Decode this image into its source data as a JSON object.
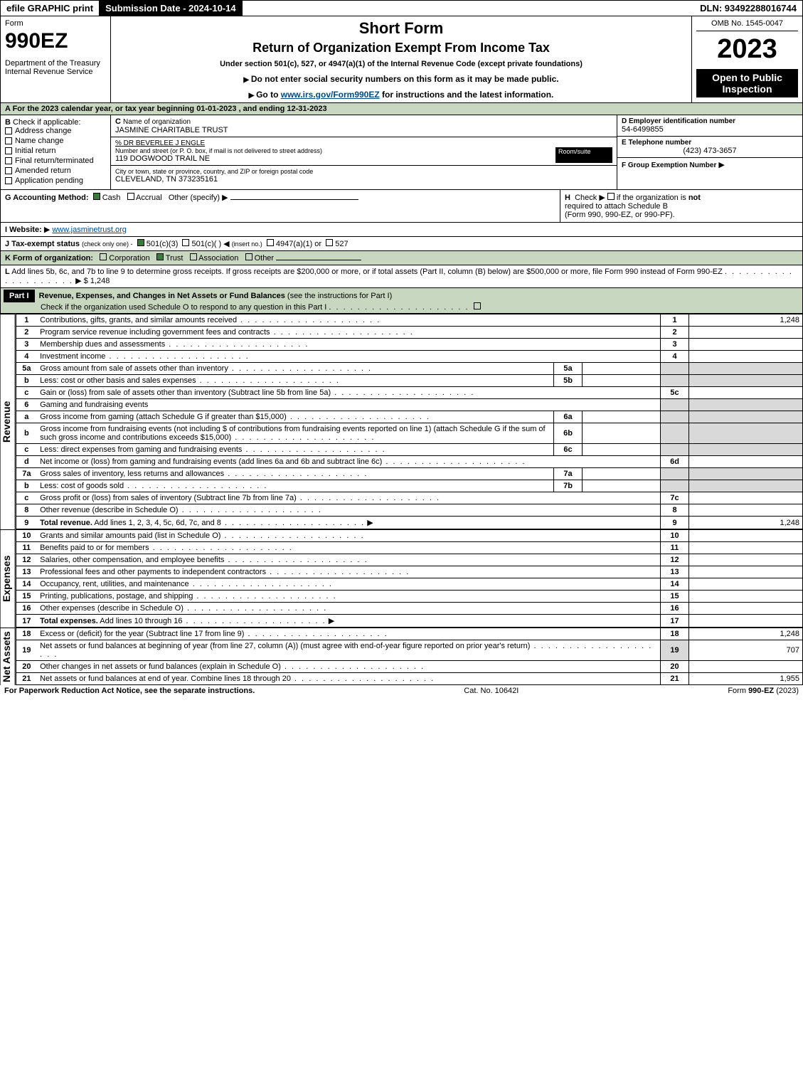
{
  "topbar": {
    "efile": "efile GRAPHIC print",
    "subdate_label": "Submission Date - 2024-10-14",
    "dln": "DLN: 93492288016744"
  },
  "header": {
    "form_label": "Form",
    "form_no": "990EZ",
    "dept": "Department of the Treasury",
    "irs": "Internal Revenue Service",
    "title_short": "Short Form",
    "title_return": "Return of Organization Exempt From Income Tax",
    "subtitle": "Under section 501(c), 527, or 4947(a)(1) of the Internal Revenue Code (except private foundations)",
    "instr1": "Do not enter social security numbers on this form as it may be made public.",
    "instr2_prefix": "Go to ",
    "instr2_link": "www.irs.gov/Form990EZ",
    "instr2_suffix": " for instructions and the latest information.",
    "omb": "OMB No. 1545-0047",
    "year": "2023",
    "open": "Open to Public Inspection"
  },
  "A": {
    "text": "A  For the 2023 calendar year, or tax year beginning 01-01-2023 , and ending 12-31-2023"
  },
  "B": {
    "label": "B",
    "check_label": "Check if applicable:",
    "items": [
      {
        "label": "Address change",
        "checked": false
      },
      {
        "label": "Name change",
        "checked": false
      },
      {
        "label": "Initial return",
        "checked": false
      },
      {
        "label": "Final return/terminated",
        "checked": false
      },
      {
        "label": "Amended return",
        "checked": false
      },
      {
        "label": "Application pending",
        "checked": false
      }
    ]
  },
  "C": {
    "label": "C",
    "name_label": "Name of organization",
    "org": "JASMINE CHARITABLE TRUST",
    "care_of": "% DR BEVERLEE J ENGLE",
    "street_label": "Number and street (or P. O. box, if mail is not delivered to street address)",
    "room_label": "Room/suite",
    "street": "119 DOGWOOD TRAIL NE",
    "city_label": "City or town, state or province, country, and ZIP or foreign postal code",
    "city": "CLEVELAND, TN  373235161"
  },
  "D": {
    "label": "D Employer identification number",
    "ein": "54-6499855"
  },
  "E": {
    "label": "E Telephone number",
    "phone": "(423) 473-3657"
  },
  "F": {
    "label": "F Group Exemption Number"
  },
  "G": {
    "label": "G Accounting Method:",
    "cash": "Cash",
    "accrual": "Accrual",
    "other": "Other (specify)"
  },
  "H": {
    "label": "H",
    "text1": "Check",
    "text2": "if the organization is",
    "not": "not",
    "text3": "required to attach Schedule B",
    "text4": "(Form 990, 990-EZ, or 990-PF)."
  },
  "I": {
    "label": "I Website:",
    "url": "www.jasminetrust.org"
  },
  "J": {
    "label": "J Tax-exempt status",
    "note": "(check only one) -",
    "o1": "501(c)(3)",
    "o2": "501(c)(   )",
    "insert": "(insert no.)",
    "o3": "4947(a)(1) or",
    "o4": "527"
  },
  "K": {
    "label": "K Form of organization:",
    "corp": "Corporation",
    "trust": "Trust",
    "assoc": "Association",
    "other": "Other"
  },
  "L": {
    "label": "L",
    "text": "Add lines 5b, 6c, and 7b to line 9 to determine gross receipts. If gross receipts are $200,000 or more, or if total assets (Part II, column (B) below) are $500,000 or more, file Form 990 instead of Form 990-EZ",
    "amount": "$ 1,248"
  },
  "partI": {
    "label": "Part I",
    "title": "Revenue, Expenses, and Changes in Net Assets or Fund Balances",
    "note": "(see the instructions for Part I)",
    "checknote": "Check if the organization used Schedule O to respond to any question in this Part I"
  },
  "revenue_label": "Revenue",
  "expenses_label": "Expenses",
  "netassets_label": "Net Assets",
  "revenue": [
    {
      "n": "1",
      "desc": "Contributions, gifts, grants, and similar amounts received",
      "rn": "1",
      "val": "1,248"
    },
    {
      "n": "2",
      "desc": "Program service revenue including government fees and contracts",
      "rn": "2",
      "val": ""
    },
    {
      "n": "3",
      "desc": "Membership dues and assessments",
      "rn": "3",
      "val": ""
    },
    {
      "n": "4",
      "desc": "Investment income",
      "rn": "4",
      "val": ""
    },
    {
      "n": "5a",
      "desc": "Gross amount from sale of assets other than inventory",
      "sub": "5a",
      "grey": true
    },
    {
      "n": "b",
      "desc": "Less: cost or other basis and sales expenses",
      "sub": "5b",
      "grey": true
    },
    {
      "n": "c",
      "desc": "Gain or (loss) from sale of assets other than inventory (Subtract line 5b from line 5a)",
      "rn": "5c",
      "val": ""
    },
    {
      "n": "6",
      "desc": "Gaming and fundraising events",
      "greyrow": true
    },
    {
      "n": "a",
      "desc": "Gross income from gaming (attach Schedule G if greater than $15,000)",
      "sub": "6a",
      "grey": true
    },
    {
      "n": "b",
      "desc": "Gross income from fundraising events (not including $                    of contributions from fundraising events reported on line 1) (attach Schedule G if the sum of such gross income and contributions exceeds $15,000)",
      "sub": "6b",
      "grey": true
    },
    {
      "n": "c",
      "desc": "Less: direct expenses from gaming and fundraising events",
      "sub": "6c",
      "grey": true
    },
    {
      "n": "d",
      "desc": "Net income or (loss) from gaming and fundraising events (add lines 6a and 6b and subtract line 6c)",
      "rn": "6d",
      "val": ""
    },
    {
      "n": "7a",
      "desc": "Gross sales of inventory, less returns and allowances",
      "sub": "7a",
      "grey": true
    },
    {
      "n": "b",
      "desc": "Less: cost of goods sold",
      "sub": "7b",
      "grey": true
    },
    {
      "n": "c",
      "desc": "Gross profit or (loss) from sales of inventory (Subtract line 7b from line 7a)",
      "rn": "7c",
      "val": ""
    },
    {
      "n": "8",
      "desc": "Other revenue (describe in Schedule O)",
      "rn": "8",
      "val": ""
    },
    {
      "n": "9",
      "desc": "Total revenue. Add lines 1, 2, 3, 4, 5c, 6d, 7c, and 8",
      "rn": "9",
      "val": "1,248",
      "bold": true,
      "arrow": true
    }
  ],
  "expenses": [
    {
      "n": "10",
      "desc": "Grants and similar amounts paid (list in Schedule O)",
      "rn": "10",
      "val": ""
    },
    {
      "n": "11",
      "desc": "Benefits paid to or for members",
      "rn": "11",
      "val": ""
    },
    {
      "n": "12",
      "desc": "Salaries, other compensation, and employee benefits",
      "rn": "12",
      "val": ""
    },
    {
      "n": "13",
      "desc": "Professional fees and other payments to independent contractors",
      "rn": "13",
      "val": ""
    },
    {
      "n": "14",
      "desc": "Occupancy, rent, utilities, and maintenance",
      "rn": "14",
      "val": ""
    },
    {
      "n": "15",
      "desc": "Printing, publications, postage, and shipping",
      "rn": "15",
      "val": ""
    },
    {
      "n": "16",
      "desc": "Other expenses (describe in Schedule O)",
      "rn": "16",
      "val": ""
    },
    {
      "n": "17",
      "desc": "Total expenses. Add lines 10 through 16",
      "rn": "17",
      "val": "",
      "bold": true,
      "arrow": true
    }
  ],
  "netassets": [
    {
      "n": "18",
      "desc": "Excess or (deficit) for the year (Subtract line 17 from line 9)",
      "rn": "18",
      "val": "1,248"
    },
    {
      "n": "19",
      "desc": "Net assets or fund balances at beginning of year (from line 27, column (A)) (must agree with end-of-year figure reported on prior year's return)",
      "rn": "19",
      "val": "707",
      "grey": true
    },
    {
      "n": "20",
      "desc": "Other changes in net assets or fund balances (explain in Schedule O)",
      "rn": "20",
      "val": ""
    },
    {
      "n": "21",
      "desc": "Net assets or fund balances at end of year. Combine lines 18 through 20",
      "rn": "21",
      "val": "1,955"
    }
  ],
  "footer": {
    "left": "For Paperwork Reduction Act Notice, see the separate instructions.",
    "center": "Cat. No. 10642I",
    "right": "Form 990-EZ (2023)"
  }
}
